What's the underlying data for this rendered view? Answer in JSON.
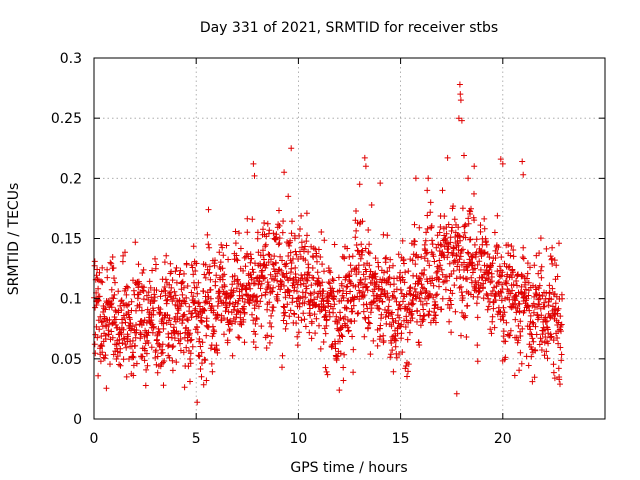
{
  "chart_data": {
    "type": "scatter",
    "title": "Day 331 of 2021, SRMTID for receiver stbs",
    "xlabel": "GPS time / hours",
    "ylabel": "SRMTID / TECUs",
    "xlim": [
      0,
      25
    ],
    "ylim": [
      0,
      0.3
    ],
    "x_ticks": [
      0,
      5,
      10,
      15,
      20
    ],
    "x_tick_labels": [
      "0",
      "5",
      "10",
      "15",
      "20"
    ],
    "y_ticks": [
      0,
      0.05,
      0.1,
      0.15,
      0.2,
      0.25,
      0.3
    ],
    "y_tick_labels": [
      "0",
      "0.05",
      "0.1",
      "0.15",
      "0.2",
      "0.25",
      "0.3"
    ],
    "grid": true,
    "marker": "plus",
    "marker_color": "#e00000",
    "series": [
      {
        "name": "SRMTID",
        "x_range": [
          0,
          22.9
        ],
        "n_points": 2200,
        "seed": 331,
        "baseline_profile": [
          [
            0,
            0.085
          ],
          [
            1,
            0.085
          ],
          [
            2,
            0.085
          ],
          [
            3,
            0.085
          ],
          [
            4,
            0.085
          ],
          [
            5,
            0.083
          ],
          [
            6,
            0.095
          ],
          [
            7,
            0.105
          ],
          [
            8,
            0.11
          ],
          [
            9,
            0.12
          ],
          [
            10,
            0.115
          ],
          [
            11,
            0.105
          ],
          [
            12,
            0.085
          ],
          [
            13,
            0.12
          ],
          [
            14,
            0.105
          ],
          [
            15,
            0.085
          ],
          [
            16,
            0.11
          ],
          [
            17,
            0.13
          ],
          [
            18,
            0.135
          ],
          [
            19,
            0.12
          ],
          [
            20,
            0.105
          ],
          [
            21,
            0.095
          ],
          [
            22,
            0.09
          ],
          [
            22.9,
            0.085
          ]
        ],
        "spread": 0.022,
        "outliers": [
          {
            "x": 0.2,
            "y": 0.036
          },
          {
            "x": 1.6,
            "y": 0.035
          },
          {
            "x": 3.4,
            "y": 0.028
          },
          {
            "x": 5.05,
            "y": 0.014
          },
          {
            "x": 5.5,
            "y": 0.032
          },
          {
            "x": 5.6,
            "y": 0.174
          },
          {
            "x": 7.8,
            "y": 0.212
          },
          {
            "x": 7.85,
            "y": 0.202
          },
          {
            "x": 9.3,
            "y": 0.205
          },
          {
            "x": 9.65,
            "y": 0.225
          },
          {
            "x": 9.5,
            "y": 0.185
          },
          {
            "x": 12.0,
            "y": 0.024
          },
          {
            "x": 12.2,
            "y": 0.032
          },
          {
            "x": 13.25,
            "y": 0.217
          },
          {
            "x": 13.3,
            "y": 0.21
          },
          {
            "x": 13.0,
            "y": 0.195
          },
          {
            "x": 14.0,
            "y": 0.196
          },
          {
            "x": 15.75,
            "y": 0.2
          },
          {
            "x": 16.3,
            "y": 0.19
          },
          {
            "x": 16.35,
            "y": 0.2
          },
          {
            "x": 17.05,
            "y": 0.19
          },
          {
            "x": 17.3,
            "y": 0.217
          },
          {
            "x": 17.75,
            "y": 0.021
          },
          {
            "x": 17.9,
            "y": 0.278
          },
          {
            "x": 17.92,
            "y": 0.27
          },
          {
            "x": 17.95,
            "y": 0.265
          },
          {
            "x": 17.85,
            "y": 0.25
          },
          {
            "x": 18.0,
            "y": 0.248
          },
          {
            "x": 18.1,
            "y": 0.219
          },
          {
            "x": 18.3,
            "y": 0.2
          },
          {
            "x": 18.6,
            "y": 0.21
          },
          {
            "x": 19.9,
            "y": 0.216
          },
          {
            "x": 20.0,
            "y": 0.212
          },
          {
            "x": 20.95,
            "y": 0.214
          },
          {
            "x": 21.0,
            "y": 0.203
          },
          {
            "x": 22.75,
            "y": 0.146
          },
          {
            "x": 22.8,
            "y": 0.029
          },
          {
            "x": 22.55,
            "y": 0.034
          }
        ]
      }
    ]
  }
}
